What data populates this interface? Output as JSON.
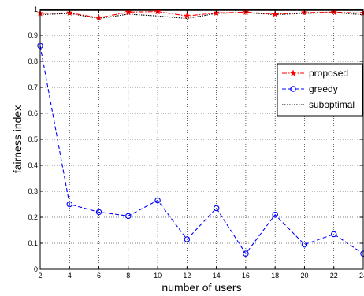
{
  "chart_data": {
    "type": "line",
    "title": "",
    "xlabel": "number of users",
    "ylabel": "fairness index",
    "xlim": [
      2,
      24
    ],
    "ylim": [
      0,
      1
    ],
    "grid": true,
    "legend_position": "right",
    "x": [
      2,
      4,
      6,
      8,
      10,
      12,
      14,
      16,
      18,
      20,
      22,
      24
    ],
    "x_tick_labels": [
      "2",
      "4",
      "6",
      "8",
      "10",
      "12",
      "14",
      "16",
      "18",
      "20",
      "22",
      "24"
    ],
    "y_tick_labels": [
      "0",
      "0.1",
      "0.2",
      "0.3",
      "0.4",
      "0.5",
      "0.6",
      "0.7",
      "0.8",
      "0.9",
      "1"
    ],
    "series": [
      {
        "name": "proposed",
        "color": "#ff0000",
        "line_style": "dash-dot",
        "marker": "star",
        "values": [
          0.985,
          0.987,
          0.968,
          0.99,
          0.992,
          0.975,
          0.987,
          0.99,
          0.982,
          0.988,
          0.99,
          0.986
        ]
      },
      {
        "name": "greedy",
        "color": "#0000ff",
        "line_style": "dashed",
        "marker": "circle",
        "values": [
          0.86,
          0.25,
          0.22,
          0.205,
          0.265,
          0.115,
          0.235,
          0.06,
          0.21,
          0.095,
          0.135,
          0.06
        ]
      },
      {
        "name": "suboptimal",
        "color": "#000000",
        "line_style": "dotted",
        "marker": "none",
        "values": [
          0.98,
          0.985,
          0.965,
          0.982,
          0.975,
          0.965,
          0.985,
          0.988,
          0.98,
          0.985,
          0.988,
          0.98
        ]
      },
      {
        "name": "",
        "color": "#000000",
        "line_style": "solid",
        "marker": "none",
        "values": [
          0.997,
          0.997,
          0.997,
          0.997,
          0.997,
          0.997,
          0.997,
          0.997,
          0.997,
          0.997,
          0.997,
          0.997
        ]
      }
    ]
  }
}
